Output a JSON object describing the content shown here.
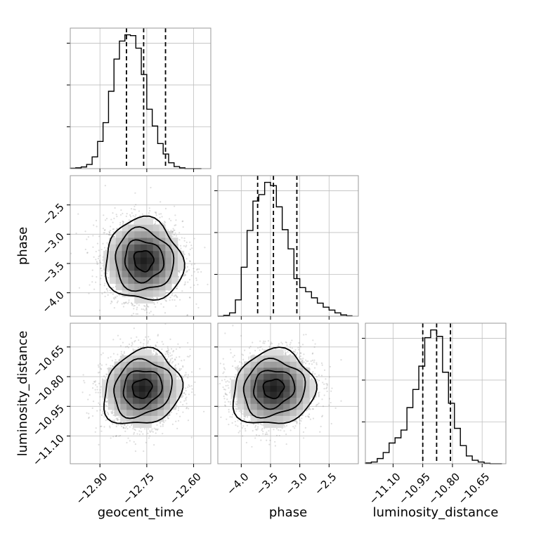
{
  "chart_data": {
    "type": "corner",
    "parameters": [
      "geocent_time",
      "phase",
      "luminosity_distance"
    ],
    "axis_labels": {
      "geocent_time": "geocent_time",
      "phase": "phase",
      "luminosity_distance": "luminosity_distance"
    },
    "ranges": {
      "geocent_time": [
        -12.995,
        -12.545
      ],
      "phase": [
        -4.4,
        -2.0
      ],
      "luminosity_distance": [
        -11.24,
        -10.53
      ]
    },
    "ticks": {
      "geocent_time": [
        -12.9,
        -12.75,
        -12.6
      ],
      "phase": [
        -4.0,
        -3.5,
        -3.0,
        -2.5
      ],
      "luminosity_distance": [
        -11.1,
        -10.95,
        -10.8,
        -10.65
      ]
    },
    "tick_labels": {
      "geocent_time": [
        "−12.90",
        "−12.75",
        "−12.60"
      ],
      "phase": [
        "−4.0",
        "−3.5",
        "−3.0",
        "−2.5"
      ],
      "luminosity_distance": [
        "−11.10",
        "−10.95",
        "−10.80",
        "−10.65"
      ]
    },
    "quantiles": {
      "geocent_time": [
        -12.815,
        -12.76,
        -12.69
      ],
      "phase": [
        -3.72,
        -3.45,
        -3.05
      ],
      "luminosity_distance": [
        -10.95,
        -10.88,
        -10.81
      ]
    },
    "histograms": {
      "geocent_time": {
        "bin_edges": [
          -12.995,
          -12.9775,
          -12.96,
          -12.9425,
          -12.925,
          -12.9075,
          -12.89,
          -12.8725,
          -12.855,
          -12.8375,
          -12.82,
          -12.8025,
          -12.785,
          -12.7675,
          -12.75,
          -12.7325,
          -12.715,
          -12.6975,
          -12.68,
          -12.6625,
          -12.645,
          -12.6275,
          -12.61,
          -12.5925,
          -12.575
        ],
        "counts": [
          1,
          2,
          4,
          10,
          28,
          65,
          110,
          185,
          262,
          305,
          320,
          318,
          288,
          225,
          142,
          102,
          60,
          35,
          14,
          5,
          2,
          0,
          0,
          0
        ]
      },
      "phase": {
        "bin_edges": [
          -4.4,
          -4.3,
          -4.2,
          -4.1,
          -4.0,
          -3.9,
          -3.8,
          -3.7,
          -3.6,
          -3.5,
          -3.4,
          -3.3,
          -3.2,
          -3.1,
          -3.0,
          -2.9,
          -2.8,
          -2.7,
          -2.6,
          -2.5,
          -2.4,
          -2.3,
          -2.2,
          -2.1
        ],
        "counts": [
          0,
          2,
          8,
          40,
          120,
          210,
          282,
          298,
          328,
          320,
          268,
          212,
          165,
          92,
          70,
          60,
          45,
          32,
          22,
          15,
          8,
          3,
          1
        ]
      },
      "luminosity_distance": {
        "bin_edges": [
          -11.24,
          -11.21,
          -11.18,
          -11.15,
          -11.12,
          -11.09,
          -11.06,
          -11.03,
          -11.0,
          -10.97,
          -10.94,
          -10.91,
          -10.88,
          -10.85,
          -10.82,
          -10.79,
          -10.76,
          -10.73,
          -10.7,
          -10.67,
          -10.64,
          -10.61,
          -10.58,
          -10.55
        ],
        "counts": [
          2,
          4,
          12,
          26,
          48,
          60,
          78,
          130,
          172,
          226,
          292,
          310,
          295,
          212,
          140,
          82,
          42,
          18,
          8,
          4,
          1,
          0,
          0
        ]
      }
    },
    "pairs": [
      {
        "x": "geocent_time",
        "y": "phase",
        "center": [
          -12.76,
          -3.45
        ],
        "sigma": [
          0.062,
          0.35
        ],
        "rho": -0.05
      },
      {
        "x": "geocent_time",
        "y": "luminosity_distance",
        "center": [
          -12.765,
          -10.86
        ],
        "sigma": [
          0.062,
          0.095
        ],
        "rho": 0.15
      },
      {
        "x": "phase",
        "y": "luminosity_distance",
        "center": [
          -3.45,
          -10.86
        ],
        "sigma": [
          0.35,
          0.095
        ],
        "rho": 0.1
      }
    ],
    "contour_levels_sigma": [
      0.5,
      1.0,
      1.5,
      2.0
    ],
    "grid": true
  }
}
